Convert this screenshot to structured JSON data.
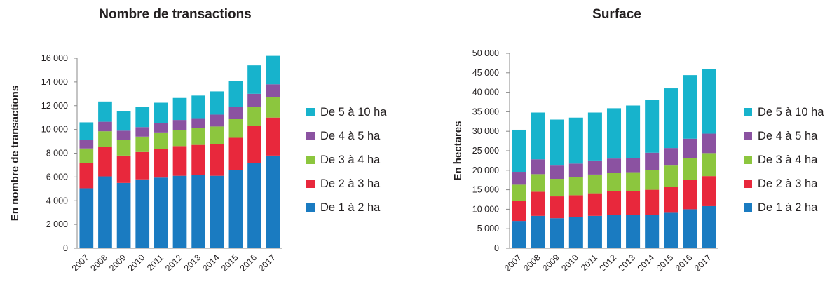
{
  "chart_data": [
    {
      "type": "bar",
      "stacked": true,
      "title": "Nombre de transactions",
      "ylabel": "En nombre de transactions",
      "xlabel": "",
      "categories": [
        "2007",
        "2008",
        "2009",
        "2010",
        "2011",
        "2012",
        "2013",
        "2014",
        "2015",
        "2016",
        "2017"
      ],
      "ylim": [
        0,
        16000
      ],
      "yticks": [
        0,
        2000,
        4000,
        6000,
        8000,
        10000,
        12000,
        14000,
        16000
      ],
      "ytick_labels": [
        "0",
        "2 000",
        "4 000",
        "6 000",
        "8 000",
        "10 000",
        "12 000",
        "14 000",
        "16 000"
      ],
      "legend_position": "right",
      "series": [
        {
          "name": "De 1 à 2 ha",
          "color": "#1a7bc1",
          "values": [
            5050,
            6050,
            5500,
            5800,
            5950,
            6100,
            6150,
            6100,
            6600,
            7200,
            7800
          ]
        },
        {
          "name": "De 2 à 3 ha",
          "color": "#e8283c",
          "values": [
            2150,
            2500,
            2300,
            2300,
            2400,
            2500,
            2550,
            2650,
            2700,
            3100,
            3200
          ]
        },
        {
          "name": "De 3 à 4 ha",
          "color": "#8cc63e",
          "values": [
            1200,
            1300,
            1350,
            1300,
            1400,
            1350,
            1400,
            1500,
            1600,
            1600,
            1700
          ]
        },
        {
          "name": "De 4 à 5 ha",
          "color": "#8b52a1",
          "values": [
            700,
            800,
            750,
            800,
            800,
            850,
            850,
            1000,
            1000,
            1100,
            1100
          ]
        },
        {
          "name": "De 5 à 10 ha",
          "color": "#17b3cc",
          "values": [
            1500,
            1700,
            1650,
            1700,
            1700,
            1850,
            1900,
            1950,
            2200,
            2400,
            2400
          ]
        }
      ]
    },
    {
      "type": "bar",
      "stacked": true,
      "title": "Surface",
      "ylabel": "En hectares",
      "xlabel": "",
      "categories": [
        "2007",
        "2008",
        "2009",
        "2010",
        "2011",
        "2012",
        "2013",
        "2014",
        "2015",
        "2016",
        "2017"
      ],
      "ylim": [
        0,
        50000
      ],
      "yticks": [
        0,
        5000,
        10000,
        15000,
        20000,
        25000,
        30000,
        35000,
        40000,
        45000,
        50000
      ],
      "ytick_labels": [
        "0",
        "5 000",
        "10 000",
        "15 000",
        "20 000",
        "25 000",
        "30 000",
        "35 000",
        "40 000",
        "45 000",
        "50 000"
      ],
      "legend_position": "right",
      "series": [
        {
          "name": "De 1 à 2 ha",
          "color": "#1a7bc1",
          "values": [
            7000,
            8300,
            7700,
            8000,
            8300,
            8500,
            8600,
            8500,
            9100,
            10000,
            10800
          ]
        },
        {
          "name": "De 2 à 3 ha",
          "color": "#e8283c",
          "values": [
            5200,
            6200,
            5600,
            5600,
            5800,
            6100,
            6100,
            6500,
            6600,
            7500,
            7700
          ]
        },
        {
          "name": "De 3 à 4 ha",
          "color": "#8cc63e",
          "values": [
            4100,
            4500,
            4500,
            4600,
            4800,
            4700,
            4800,
            5000,
            5500,
            5600,
            5900
          ]
        },
        {
          "name": "De 4 à 5 ha",
          "color": "#8b52a1",
          "values": [
            3300,
            3800,
            3400,
            3500,
            3600,
            3700,
            3700,
            4500,
            4500,
            5000,
            5000
          ]
        },
        {
          "name": "De 5 à 10 ha",
          "color": "#17b3cc",
          "values": [
            10800,
            12000,
            11800,
            11800,
            12300,
            12900,
            13400,
            13500,
            15300,
            16300,
            16600
          ]
        }
      ]
    }
  ]
}
